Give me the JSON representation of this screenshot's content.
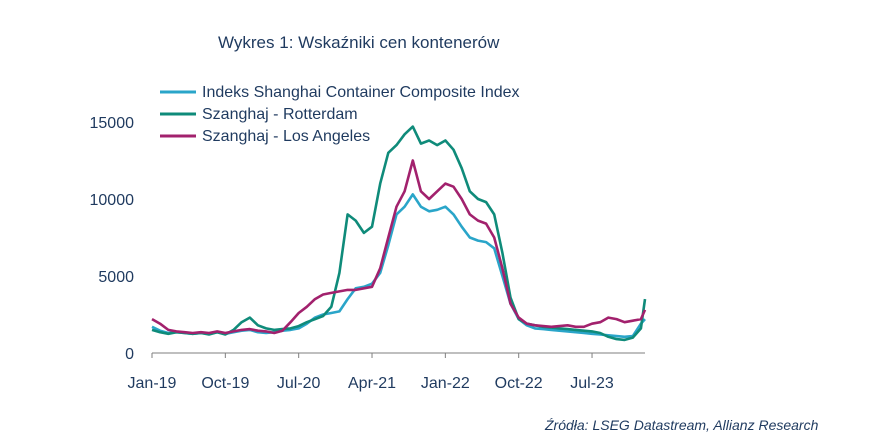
{
  "chart_data": {
    "type": "line",
    "title": "Wykres 1: Wskaźniki cen kontenerów",
    "source": "Źródła: LSEG Datastream, Allianz Research",
    "xlabel": "",
    "ylabel": "",
    "ylim": [
      0,
      15000
    ],
    "y_ticks": [
      "0",
      "5000",
      "10000",
      "15000"
    ],
    "x_ticks": [
      "Jan-19",
      "Oct-19",
      "Jul-20",
      "Apr-21",
      "Jan-22",
      "Oct-22",
      "Jul-23"
    ],
    "x_tick_positions": [
      0,
      9,
      18,
      27,
      36,
      45,
      54
    ],
    "xlim": [
      0,
      60.5
    ],
    "legend_position": "top-left",
    "series": [
      {
        "name": "Indeks Shanghai Container Composite Index",
        "color": "#2aa5c9",
        "x": [
          0,
          1,
          2,
          3,
          4,
          5,
          6,
          7,
          8,
          9,
          10,
          11,
          12,
          13,
          14,
          15,
          16,
          17,
          18,
          19,
          20,
          21,
          22,
          23,
          24,
          25,
          26,
          27,
          28,
          29,
          30,
          31,
          32,
          33,
          34,
          35,
          36,
          37,
          38,
          39,
          40,
          41,
          42,
          43,
          44,
          45,
          46,
          47,
          48,
          49,
          50,
          51,
          52,
          53,
          54,
          55,
          56,
          57,
          58,
          59,
          60,
          60.5
        ],
        "values": [
          1700,
          1450,
          1300,
          1350,
          1300,
          1250,
          1300,
          1250,
          1350,
          1250,
          1350,
          1450,
          1500,
          1350,
          1300,
          1350,
          1450,
          1500,
          1600,
          1900,
          2300,
          2500,
          2600,
          2700,
          3500,
          4200,
          4300,
          4500,
          5200,
          7000,
          9000,
          9500,
          10300,
          9500,
          9200,
          9300,
          9500,
          9000,
          8200,
          7500,
          7300,
          7200,
          6800,
          5000,
          3200,
          2200,
          1800,
          1600,
          1550,
          1500,
          1450,
          1400,
          1350,
          1300,
          1250,
          1200,
          1150,
          1100,
          1050,
          1100,
          1900,
          2200
        ]
      },
      {
        "name": "Szanghaj - Rotterdam",
        "color": "#0f8b7a",
        "x": [
          0,
          1,
          2,
          3,
          4,
          5,
          6,
          7,
          8,
          9,
          10,
          11,
          12,
          13,
          14,
          15,
          16,
          17,
          18,
          19,
          20,
          21,
          22,
          23,
          24,
          25,
          26,
          27,
          28,
          29,
          30,
          31,
          32,
          33,
          34,
          35,
          36,
          37,
          38,
          39,
          40,
          41,
          42,
          43,
          44,
          45,
          46,
          47,
          48,
          49,
          50,
          51,
          52,
          53,
          54,
          55,
          56,
          57,
          58,
          59,
          60,
          60.5
        ],
        "values": [
          1500,
          1350,
          1250,
          1350,
          1300,
          1250,
          1300,
          1200,
          1350,
          1200,
          1500,
          2000,
          2300,
          1800,
          1600,
          1500,
          1550,
          1600,
          1750,
          2000,
          2200,
          2400,
          3000,
          5200,
          9000,
          8600,
          7800,
          8200,
          11000,
          13000,
          13500,
          14200,
          14700,
          13600,
          13800,
          13500,
          13800,
          13200,
          12000,
          10500,
          10000,
          9800,
          9000,
          6500,
          3600,
          2200,
          1900,
          1800,
          1700,
          1650,
          1600,
          1550,
          1500,
          1450,
          1400,
          1300,
          1050,
          900,
          850,
          1000,
          1600,
          3500
        ]
      },
      {
        "name": "Szanghaj - Los Angeles",
        "color": "#a2216d",
        "x": [
          0,
          1,
          2,
          3,
          4,
          5,
          6,
          7,
          8,
          9,
          10,
          11,
          12,
          13,
          14,
          15,
          16,
          17,
          18,
          19,
          20,
          21,
          22,
          23,
          24,
          25,
          26,
          27,
          28,
          29,
          30,
          31,
          32,
          33,
          34,
          35,
          36,
          37,
          38,
          39,
          40,
          41,
          42,
          43,
          44,
          45,
          46,
          47,
          48,
          49,
          50,
          51,
          52,
          53,
          54,
          55,
          56,
          57,
          58,
          59,
          60,
          60.5
        ],
        "values": [
          2200,
          1900,
          1500,
          1400,
          1350,
          1300,
          1350,
          1300,
          1400,
          1300,
          1400,
          1500,
          1550,
          1450,
          1400,
          1300,
          1450,
          2000,
          2600,
          3000,
          3500,
          3800,
          3900,
          4000,
          4100,
          4100,
          4200,
          4300,
          5500,
          7500,
          9500,
          10500,
          12500,
          10500,
          10000,
          10500,
          11000,
          10800,
          10000,
          9000,
          8600,
          8400,
          7500,
          5500,
          3200,
          2300,
          1900,
          1800,
          1750,
          1700,
          1750,
          1800,
          1700,
          1700,
          1900,
          2000,
          2300,
          2200,
          2000,
          2100,
          2200,
          2800
        ]
      }
    ]
  }
}
